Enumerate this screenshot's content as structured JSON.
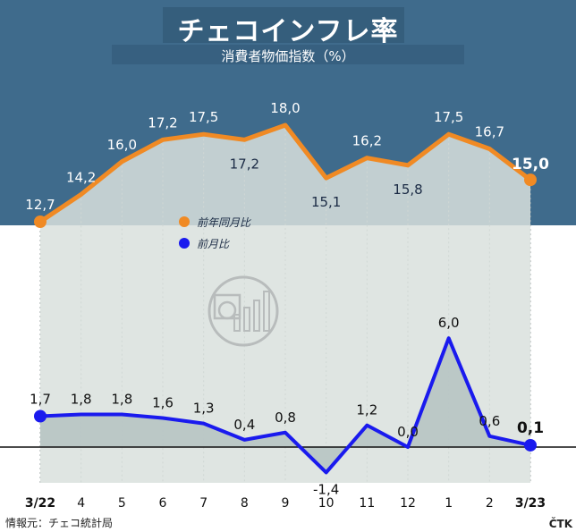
{
  "header": {
    "title": "チェコインフレ率",
    "subtitle": "消費者物価指数（%）"
  },
  "footer": {
    "source": "情報元：チェコ統計局",
    "credit": "ČTK"
  },
  "colors": {
    "header_bg": "#3f6b8c",
    "yoy_line": "#f08a24",
    "mom_line": "#1a1aee",
    "area_fill": "#d9e0dd",
    "label_dark": "#1a2a44"
  },
  "chart_data": {
    "type": "line",
    "categories": [
      "3/22",
      "4",
      "5",
      "6",
      "7",
      "8",
      "9",
      "10",
      "11",
      "12",
      "1",
      "2",
      "3/23"
    ],
    "series": [
      {
        "name": "前年同月比",
        "values": [
          12.7,
          14.2,
          16.0,
          17.2,
          17.5,
          17.2,
          18.0,
          15.1,
          16.2,
          15.8,
          17.5,
          16.7,
          15.0
        ],
        "labels": [
          "12,7",
          "14,2",
          "16,0",
          "17,2",
          "17,5",
          "17,2",
          "18,0",
          "15,1",
          "16,2",
          "15,8",
          "17,5",
          "16,7",
          "15,0"
        ]
      },
      {
        "name": "前月比",
        "values": [
          1.7,
          1.8,
          1.8,
          1.6,
          1.3,
          0.4,
          0.8,
          -1.4,
          1.2,
          0.0,
          6.0,
          0.6,
          0.1
        ],
        "labels": [
          "1,7",
          "1,8",
          "1,8",
          "1,6",
          "1,3",
          "0,4",
          "0,8",
          "-1,4",
          "1,2",
          "0,0",
          "6,0",
          "0,6",
          "0,1"
        ]
      }
    ]
  }
}
